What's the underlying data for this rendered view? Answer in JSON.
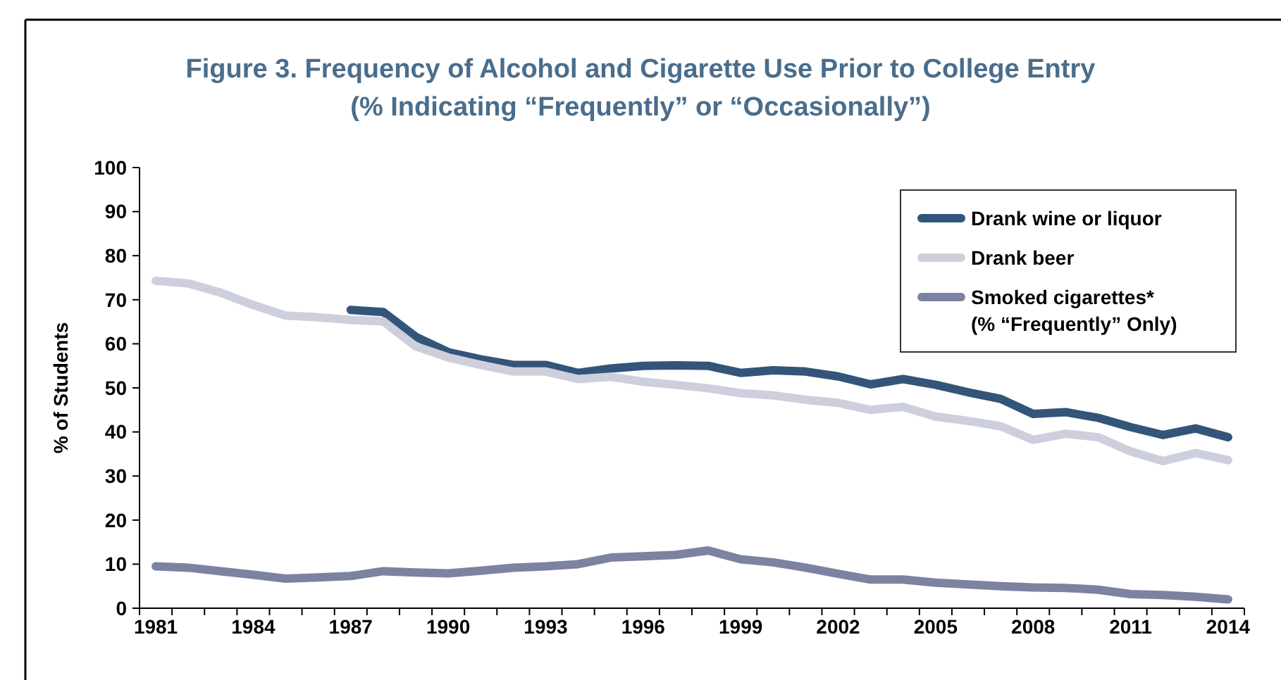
{
  "chart_data": {
    "type": "line",
    "title": "Figure 3. Frequency of Alcohol and Cigarette Use Prior to College Entry",
    "subtitle": "(% Indicating “Frequently” or “Occasionally”)",
    "ylabel": "% of Students",
    "categories": [
      "1981",
      null,
      null,
      "1984",
      null,
      null,
      "1987",
      null,
      null,
      "1990",
      null,
      null,
      "1993",
      null,
      null,
      "1996",
      null,
      null,
      "1999",
      null,
      null,
      "2002",
      null,
      null,
      "2005",
      null,
      null,
      "2008",
      null,
      null,
      "2011",
      null,
      null,
      "2014"
    ],
    "series": [
      {
        "name": "Drank wine or liquor",
        "color": "#34557a",
        "values": [
          null,
          null,
          null,
          null,
          null,
          null,
          67.7,
          67.2,
          61.6,
          58.1,
          56.5,
          55.2,
          55.2,
          53.4,
          54.4,
          55,
          55.1,
          55,
          53.4,
          54,
          53.7,
          52.6,
          50.8,
          52,
          50.7,
          49,
          47.5,
          44.1,
          44.5,
          43.2,
          41.1,
          39.3,
          40.8,
          38.8
        ]
      },
      {
        "name": "Drank beer",
        "color": "#cdd0dc",
        "values": [
          74.3,
          73.7,
          71.6,
          68.8,
          66.4,
          66,
          65.4,
          65.1,
          59.4,
          56.9,
          55.2,
          53.7,
          53.7,
          52,
          52.5,
          51.4,
          50.7,
          49.9,
          48.8,
          48.3,
          47.3,
          46.6,
          45,
          45.7,
          43.5,
          42.5,
          41.3,
          38.2,
          39.6,
          38.8,
          35.6,
          33.4,
          35.2,
          33.6
        ]
      },
      {
        "name": "Smoked cigarettes*\n(% “Frequently” Only)",
        "color": "#7b83a0",
        "values": [
          9.5,
          9.2,
          8.4,
          7.6,
          6.7,
          7,
          7.3,
          8.4,
          8.1,
          7.9,
          8.5,
          9.2,
          9.5,
          10,
          11.5,
          11.8,
          12.1,
          13.1,
          11.1,
          10.4,
          9.2,
          7.8,
          6.5,
          6.5,
          5.8,
          5.4,
          5,
          4.7,
          4.6,
          4.2,
          3.2,
          3,
          2.6,
          2
        ]
      }
    ],
    "ylim": [
      0,
      100
    ],
    "yticks": [
      0,
      10,
      20,
      30,
      40,
      50,
      60,
      70,
      80,
      90,
      100
    ],
    "grid": false,
    "legend": "top right",
    "marker": "none",
    "line_style": "solid"
  }
}
